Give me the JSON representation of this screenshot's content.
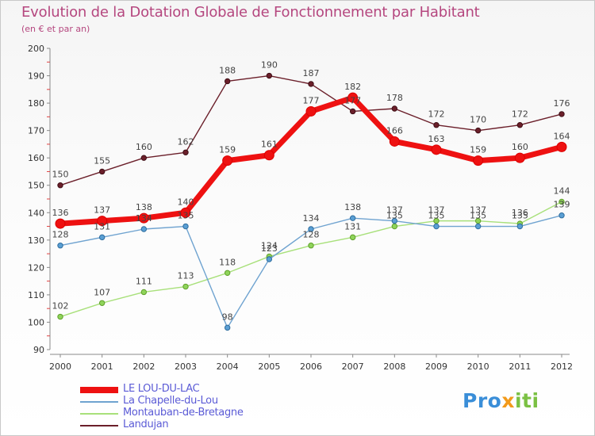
{
  "chart_data": {
    "type": "line",
    "title": "Evolution de la Dotation Globale de Fonctionnement par Habitant",
    "subtitle": "(en € et par an)",
    "xlabel": "",
    "ylabel": "",
    "ylim": [
      90,
      200
    ],
    "yticks": [
      90,
      100,
      110,
      120,
      130,
      140,
      150,
      160,
      170,
      180,
      190,
      200
    ],
    "categories": [
      "2000",
      "2001",
      "2002",
      "2003",
      "2004",
      "2005",
      "2006",
      "2007",
      "2008",
      "2009",
      "2010",
      "2011",
      "2012"
    ],
    "grid": false,
    "legend_position": "bottom-left",
    "series": [
      {
        "name": "Landujan",
        "color": "#6b1f2a",
        "values": [
          150,
          155,
          160,
          162,
          188,
          190,
          187,
          177,
          178,
          172,
          170,
          172,
          176
        ]
      },
      {
        "name": "Montauban-de-Bretagne",
        "color": "#a8e07a",
        "values": [
          102,
          107,
          111,
          113,
          118,
          124,
          128,
          131,
          135,
          137,
          137,
          136,
          144
        ]
      },
      {
        "name": "La Chapelle-du-Lou",
        "color": "#6fa3d0",
        "values": [
          128,
          131,
          134,
          135,
          98,
          123,
          134,
          138,
          137,
          135,
          135,
          135,
          139
        ]
      },
      {
        "name": "LE LOU-DU-LAC",
        "color": "#ee1111",
        "values": [
          136,
          137,
          138,
          140,
          159,
          161,
          177,
          182,
          166,
          163,
          159,
          160,
          164
        ]
      }
    ]
  },
  "legend": {
    "items": [
      {
        "label": "LE LOU-DU-LAC",
        "color": "#ee1111"
      },
      {
        "label": "La Chapelle-du-Lou",
        "color": "#6fa3d0"
      },
      {
        "label": "Montauban-de-Bretagne",
        "color": "#a8e07a"
      },
      {
        "label": "Landujan",
        "color": "#6b1f2a"
      }
    ]
  },
  "brand": {
    "part1": "Pro",
    "part2": "x",
    "part3": "iti"
  }
}
